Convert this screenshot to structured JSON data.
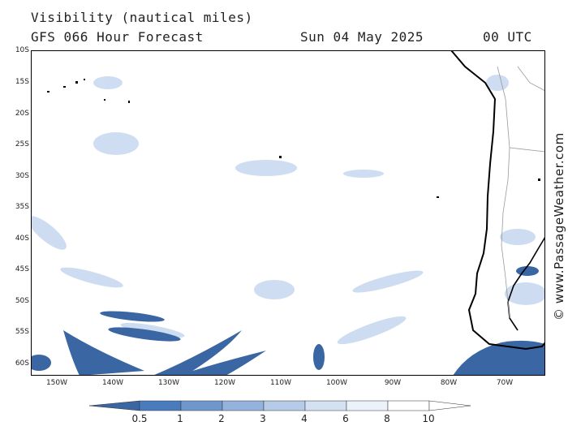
{
  "header": {
    "title": "Visibility (nautical miles)",
    "model": "GFS 066 Hour Forecast",
    "date": "Sun 04 May 2025",
    "time": "00 UTC"
  },
  "credit": "© www.PassageWeather.com",
  "axes": {
    "lat_labels": [
      "10S",
      "15S",
      "20S",
      "25S",
      "30S",
      "35S",
      "40S",
      "45S",
      "50S",
      "55S",
      "60S"
    ],
    "lon_labels": [
      "150W",
      "140W",
      "130W",
      "120W",
      "110W",
      "100W",
      "90W",
      "80W",
      "70W"
    ]
  },
  "legend": {
    "labels": [
      "0.5",
      "1",
      "2",
      "3",
      "4",
      "6",
      "8",
      "10"
    ],
    "colors": [
      "#3a66a3",
      "#4a7bbd",
      "#6f97cc",
      "#93b2dc",
      "#b5cbe8",
      "#d3e1f3",
      "#ecf2fa",
      "#ffffff"
    ]
  },
  "colors": {
    "coast": "#000000",
    "border": "#999999",
    "fog_dark": "#3a66a3",
    "fog_light": "#c5d7ef"
  }
}
